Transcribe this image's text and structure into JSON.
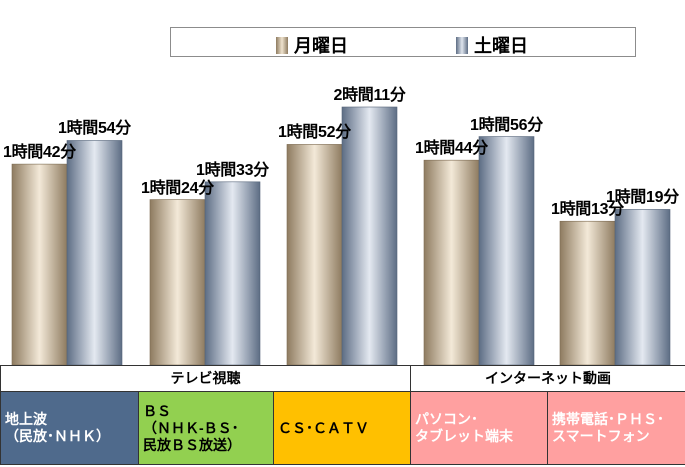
{
  "legend": {
    "monday": "月曜日",
    "saturday": "土曜日"
  },
  "colors": {
    "monday": "#c9b79b",
    "saturday": "#a7b3c4",
    "tv": "#4f6a8c",
    "bs": "#92d050",
    "cs": "#ffc000",
    "internet": "#ffa0a0"
  },
  "chart_data": {
    "type": "bar",
    "categories": [
      "地上波（民放・NHK）",
      "BS（NHK・BS・民放BS放送）",
      "CS・CATV",
      "パソコン・タブレット端末",
      "携帯電話・PHS・スマートフォン"
    ],
    "series": [
      {
        "name": "月曜日",
        "values": [
          102,
          84,
          112,
          104,
          73
        ],
        "labels": [
          "1時間42分",
          "1時間24分",
          "1時間52分",
          "1時間44分",
          "1時間13分"
        ]
      },
      {
        "name": "土曜日",
        "values": [
          114,
          93,
          131,
          116,
          79
        ],
        "labels": [
          "1時間54分",
          "1時間33分",
          "2時間11分",
          "1時間56分",
          "1時間19分"
        ]
      }
    ],
    "legend": "top"
  },
  "groups": {
    "tv": "テレビ視聴",
    "internet": "インターネット動画"
  },
  "cats": {
    "c1": [
      "地上波",
      "（民放･ＮＨＫ）"
    ],
    "c2": [
      "ＢＳ",
      "（ＮＨＫ-ＢＳ･",
      "民放ＢＳ放送）"
    ],
    "c3": [
      "ＣＳ･ＣＡＴＶ"
    ],
    "c4": [
      "パソコン･",
      "タブレット端末"
    ],
    "c5": [
      "携帯電話･ＰＨＳ･",
      "スマートフォン"
    ]
  }
}
